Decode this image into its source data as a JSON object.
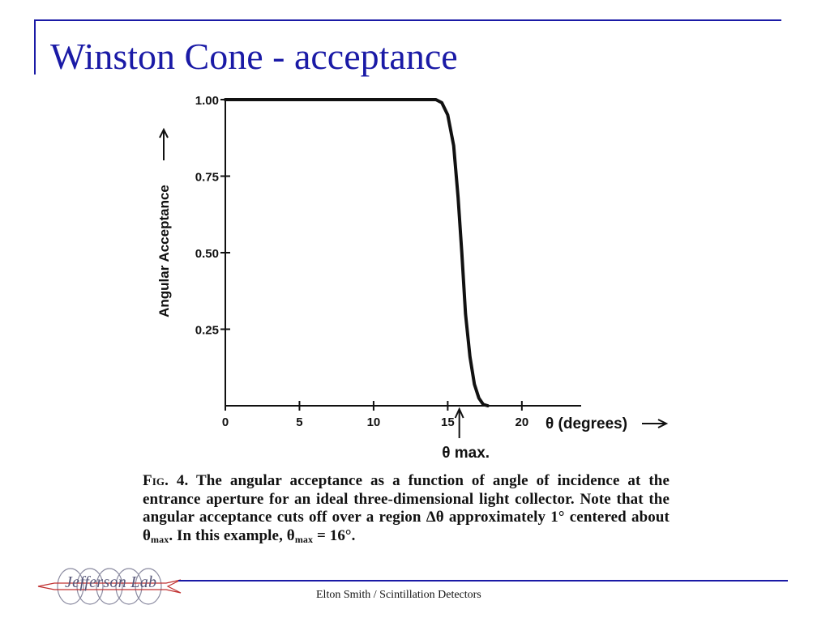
{
  "slide": {
    "title": "Winston Cone - acceptance",
    "footer": "Elton Smith / Scintillation Detectors",
    "logo_text": "Jefferson Lab"
  },
  "caption": {
    "fig_label": "Fig. 4.",
    "part1": "The angular acceptance as a function of angle of incidence at the entrance aperture for an ideal three-dimensional light collector. Note that the angular acceptance cuts off over a region Δθ approximately 1° centered about θ",
    "sub1": "max",
    "part2": ". In this example, θ",
    "sub2": "max",
    "part3": " = 16°."
  },
  "colors": {
    "title": "#1a1aa6",
    "rule": "#1a1aa6",
    "ink": "#111111"
  },
  "chart_data": {
    "type": "line",
    "ylabel": "Angular Acceptance",
    "xlabel": "θ (degrees)",
    "xlim": [
      0,
      24
    ],
    "ylim": [
      0,
      1.0
    ],
    "x_ticks": [
      0,
      5,
      10,
      15,
      20
    ],
    "x_tick_labels": [
      "0",
      "5",
      "10",
      "15",
      "20"
    ],
    "y_ticks": [
      1.0,
      0.75,
      0.5,
      0.25
    ],
    "y_tick_labels": [
      "1.00",
      "0.75",
      "0.50",
      "0.25"
    ],
    "annotation": {
      "text": "θ max.",
      "x": 16
    },
    "series": [
      {
        "x": [
          0,
          14.2,
          14.6,
          15.0,
          15.4,
          15.7,
          15.95,
          16.2,
          16.5,
          16.8,
          17.1,
          17.4,
          17.7
        ],
        "values": [
          1.0,
          1.0,
          0.99,
          0.95,
          0.85,
          0.68,
          0.5,
          0.3,
          0.16,
          0.07,
          0.025,
          0.004,
          0.0
        ]
      }
    ]
  }
}
